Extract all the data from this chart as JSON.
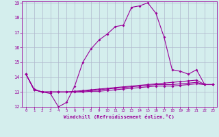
{
  "xlabel": "Windchill (Refroidissement éolien,°C)",
  "x": [
    0,
    1,
    2,
    3,
    4,
    5,
    6,
    7,
    8,
    9,
    10,
    11,
    12,
    13,
    14,
    15,
    16,
    17,
    18,
    19,
    20,
    21,
    22,
    23
  ],
  "line1": [
    14.2,
    13.2,
    13.0,
    12.9,
    12.0,
    12.3,
    13.4,
    15.0,
    15.9,
    16.5,
    16.9,
    17.4,
    17.5,
    18.7,
    18.8,
    19.0,
    18.3,
    16.7,
    14.5,
    14.4,
    14.2,
    14.5,
    13.5,
    13.5
  ],
  "line2": [
    14.2,
    13.15,
    13.0,
    13.0,
    13.0,
    13.0,
    13.05,
    13.1,
    13.15,
    13.2,
    13.25,
    13.3,
    13.35,
    13.4,
    13.45,
    13.5,
    13.55,
    13.6,
    13.65,
    13.7,
    13.75,
    13.8,
    13.5,
    13.5
  ],
  "line3": [
    14.2,
    13.15,
    13.0,
    13.0,
    13.0,
    13.0,
    13.0,
    13.05,
    13.1,
    13.15,
    13.2,
    13.25,
    13.3,
    13.35,
    13.4,
    13.45,
    13.5,
    13.5,
    13.5,
    13.55,
    13.6,
    13.65,
    13.5,
    13.5
  ],
  "line4": [
    14.2,
    13.15,
    13.0,
    13.0,
    13.0,
    13.0,
    13.0,
    13.0,
    13.05,
    13.05,
    13.1,
    13.15,
    13.2,
    13.25,
    13.3,
    13.35,
    13.4,
    13.4,
    13.4,
    13.45,
    13.5,
    13.55,
    13.5,
    13.5
  ],
  "ylim": [
    12,
    19
  ],
  "xlim": [
    -0.5,
    23.5
  ],
  "yticks": [
    12,
    13,
    14,
    15,
    16,
    17,
    18,
    19
  ],
  "xticks": [
    0,
    1,
    2,
    3,
    4,
    5,
    6,
    7,
    8,
    9,
    10,
    11,
    12,
    13,
    14,
    15,
    16,
    17,
    18,
    19,
    20,
    21,
    22,
    23
  ],
  "line_color": "#990099",
  "bg_color": "#d4eeed",
  "grid_color": "#b0b8cc",
  "markersize": 2.0
}
